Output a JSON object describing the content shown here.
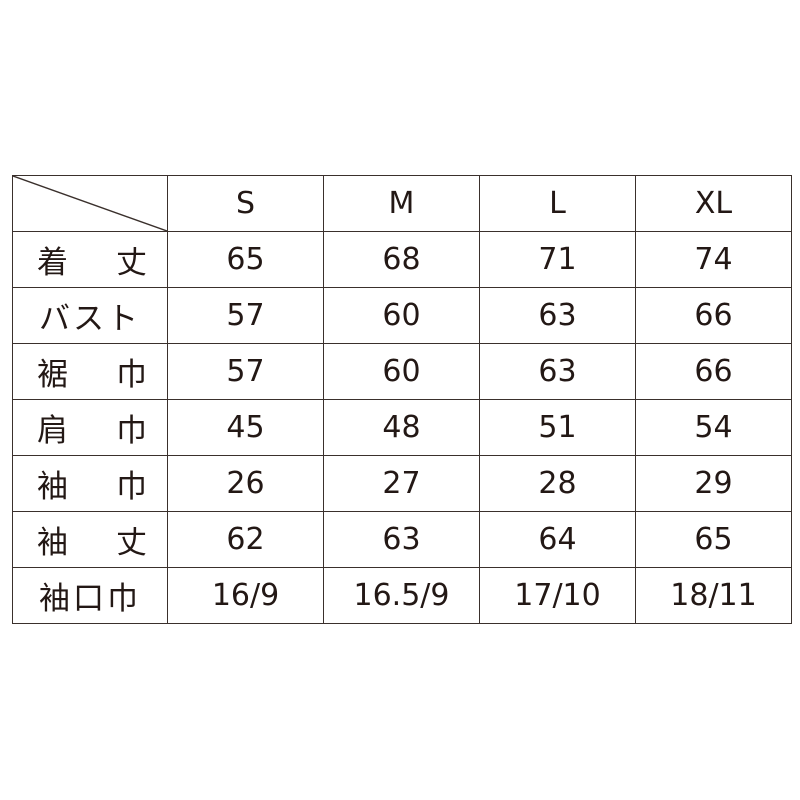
{
  "columns": [
    "S",
    "M",
    "L",
    "XL"
  ],
  "rows": [
    {
      "label": "着丈",
      "values": [
        "65",
        "68",
        "71",
        "74"
      ]
    },
    {
      "label": "バスト",
      "values": [
        "57",
        "60",
        "63",
        "66"
      ]
    },
    {
      "label": "裾巾",
      "values": [
        "57",
        "60",
        "63",
        "66"
      ]
    },
    {
      "label": "肩巾",
      "values": [
        "45",
        "48",
        "51",
        "54"
      ]
    },
    {
      "label": "袖巾",
      "values": [
        "26",
        "27",
        "28",
        "29"
      ]
    },
    {
      "label": "袖丈",
      "values": [
        "62",
        "63",
        "64",
        "65"
      ]
    },
    {
      "label": "袖口巾",
      "values": [
        "16/9",
        "16.5/9",
        "17/10",
        "18/11"
      ]
    }
  ]
}
